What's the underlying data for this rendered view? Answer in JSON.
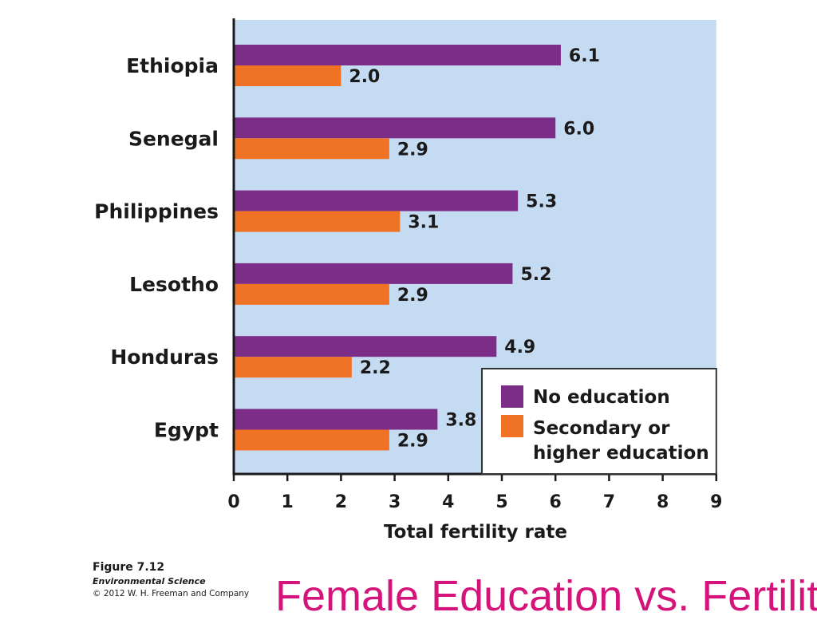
{
  "chart_data": {
    "type": "bar",
    "orientation": "horizontal",
    "categories": [
      "Ethiopia",
      "Senegal",
      "Philippines",
      "Lesotho",
      "Honduras",
      "Egypt"
    ],
    "series": [
      {
        "name": "No education",
        "values": [
          6.1,
          6.0,
          5.3,
          5.2,
          4.9,
          3.8
        ],
        "value_labels": [
          "6.1",
          "6.0",
          "5.3",
          "5.2",
          "4.9",
          "3.8"
        ],
        "color": "#7b2d87"
      },
      {
        "name": "Secondary or higher education",
        "legend_lines": [
          "Secondary or",
          "higher education"
        ],
        "values": [
          2.0,
          2.9,
          3.1,
          2.9,
          2.2,
          2.9
        ],
        "value_labels": [
          "2.0",
          "2.9",
          "3.1",
          "2.9",
          "2.2",
          "2.9"
        ],
        "color": "#f07224"
      }
    ],
    "xlabel": "Total fertility rate",
    "xlim": [
      0,
      9
    ],
    "xticks": [
      "0",
      "1",
      "2",
      "3",
      "4",
      "5",
      "6",
      "7",
      "8",
      "9"
    ],
    "legend_position": "bottom-right",
    "grid": false,
    "plot_background": "#c5dbf2"
  },
  "credits": {
    "figure": "Figure 7.12",
    "book": "Environmental Science",
    "copyright": "© 2012 W. H. Freeman and Company"
  },
  "slide_title": "Female Education vs. Fertility"
}
